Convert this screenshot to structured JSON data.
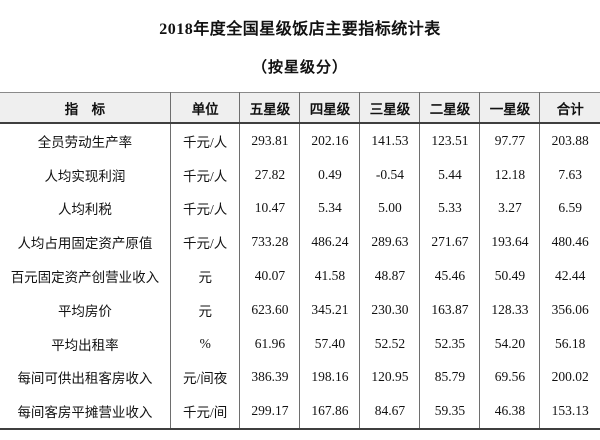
{
  "title": "2018年度全国星级饭店主要指标统计表",
  "subtitle": "（按星级分）",
  "table": {
    "columns": [
      "指　标",
      "单位",
      "五星级",
      "四星级",
      "三星级",
      "二星级",
      "一星级",
      "合计"
    ],
    "rows": [
      {
        "indicator": "全员劳动生产率",
        "unit": "千元/人",
        "values": [
          "293.81",
          "202.16",
          "141.53",
          "123.51",
          "97.77",
          "203.88"
        ]
      },
      {
        "indicator": "人均实现利润",
        "unit": "千元/人",
        "values": [
          "27.82",
          "0.49",
          "-0.54",
          "5.44",
          "12.18",
          "7.63"
        ]
      },
      {
        "indicator": "人均利税",
        "unit": "千元/人",
        "values": [
          "10.47",
          "5.34",
          "5.00",
          "5.33",
          "3.27",
          "6.59"
        ]
      },
      {
        "indicator": "人均占用固定资产原值",
        "unit": "千元/人",
        "values": [
          "733.28",
          "486.24",
          "289.63",
          "271.67",
          "193.64",
          "480.46"
        ]
      },
      {
        "indicator": "百元固定资产创营业收入",
        "unit": "元",
        "values": [
          "40.07",
          "41.58",
          "48.87",
          "45.46",
          "50.49",
          "42.44"
        ]
      },
      {
        "indicator": "平均房价",
        "unit": "元",
        "values": [
          "623.60",
          "345.21",
          "230.30",
          "163.87",
          "128.33",
          "356.06"
        ]
      },
      {
        "indicator": "平均出租率",
        "unit": "%",
        "values": [
          "61.96",
          "57.40",
          "52.52",
          "52.35",
          "54.20",
          "56.18"
        ]
      },
      {
        "indicator": "每间可供出租客房收入",
        "unit": "元/间夜",
        "values": [
          "386.39",
          "198.16",
          "120.95",
          "85.79",
          "69.56",
          "200.02"
        ]
      },
      {
        "indicator": "每间客房平摊营业收入",
        "unit": "千元/间",
        "values": [
          "299.17",
          "167.86",
          "84.67",
          "59.35",
          "46.38",
          "153.13"
        ]
      }
    ]
  },
  "chart_data": {
    "type": "table",
    "title": "2018年度全国星级饭店主要指标统计表（按星级分）",
    "columns": [
      "指标",
      "单位",
      "五星级",
      "四星级",
      "三星级",
      "二星级",
      "一星级",
      "合计"
    ],
    "rows": [
      [
        "全员劳动生产率",
        "千元/人",
        293.81,
        202.16,
        141.53,
        123.51,
        97.77,
        203.88
      ],
      [
        "人均实现利润",
        "千元/人",
        27.82,
        0.49,
        -0.54,
        5.44,
        12.18,
        7.63
      ],
      [
        "人均利税",
        "千元/人",
        10.47,
        5.34,
        5.0,
        5.33,
        3.27,
        6.59
      ],
      [
        "人均占用固定资产原值",
        "千元/人",
        733.28,
        486.24,
        289.63,
        271.67,
        193.64,
        480.46
      ],
      [
        "百元固定资产创营业收入",
        "元",
        40.07,
        41.58,
        48.87,
        45.46,
        50.49,
        42.44
      ],
      [
        "平均房价",
        "元",
        623.6,
        345.21,
        230.3,
        163.87,
        128.33,
        356.06
      ],
      [
        "平均出租率",
        "%",
        61.96,
        57.4,
        52.52,
        52.35,
        54.2,
        56.18
      ],
      [
        "每间可供出租客房收入",
        "元/间夜",
        386.39,
        198.16,
        120.95,
        85.79,
        69.56,
        200.02
      ],
      [
        "每间客房平摊营业收入",
        "千元/间",
        299.17,
        167.86,
        84.67,
        59.35,
        46.38,
        153.13
      ]
    ]
  },
  "colors": {
    "background": "#ffffff",
    "text": "#111111",
    "header_background": "#efefef",
    "rule_thin": "#6e6e6e",
    "rule_thick": "#3f3f3f"
  }
}
